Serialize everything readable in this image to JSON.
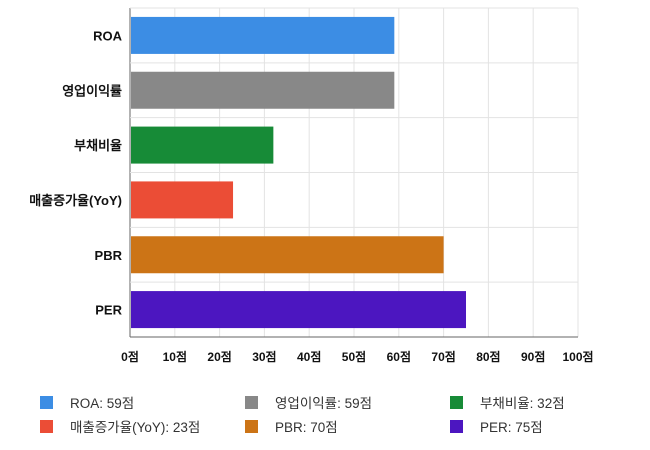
{
  "chart_data": {
    "type": "bar",
    "orientation": "horizontal",
    "categories": [
      "ROA",
      "영업이익률",
      "부채비율",
      "매출증가율(YoY)",
      "PBR",
      "PER"
    ],
    "values": [
      59,
      59,
      32,
      23,
      70,
      75
    ],
    "colors": [
      "#3c8de4",
      "#888888",
      "#178b37",
      "#eb4d36",
      "#cc7416",
      "#4c16c0"
    ],
    "xlim": [
      0,
      100
    ],
    "xticks": [
      "0점",
      "10점",
      "20점",
      "30점",
      "40점",
      "50점",
      "60점",
      "70점",
      "80점",
      "90점",
      "100점"
    ],
    "grid": true,
    "legend_position": "bottom",
    "legend": [
      {
        "label": "ROA: 59점",
        "color": "#3c8de4"
      },
      {
        "label": "영업이익률: 59점",
        "color": "#888888"
      },
      {
        "label": "부채비율: 32점",
        "color": "#178b37"
      },
      {
        "label": "매출증가율(YoY): 23점",
        "color": "#eb4d36"
      },
      {
        "label": "PBR: 70점",
        "color": "#cc7416"
      },
      {
        "label": "PER: 75점",
        "color": "#4c16c0"
      }
    ]
  }
}
